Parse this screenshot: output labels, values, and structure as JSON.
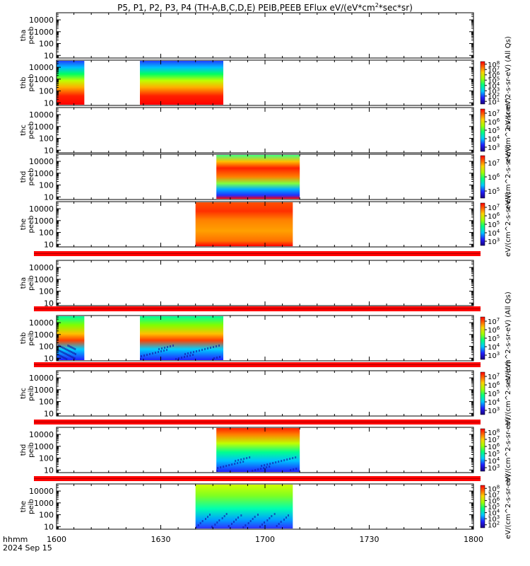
{
  "chart_data": {
    "type": "heatmap",
    "title": "P5, P1, P2, P3, P4 (TH-A,B,C,D,E) PEIB,PEEB EFlux eV/(eV*cm",
    "title_sup": "2",
    "title_end": "*sec*sr)",
    "x_units_label": "hhmm",
    "date_label": "2024 Sep 15",
    "x_ticks": [
      "1600",
      "1630",
      "1700",
      "1730",
      "1800"
    ],
    "y_ticks": [
      "10",
      "100",
      "1000",
      "10000"
    ],
    "y_scale": "log",
    "colormap": "rainbow",
    "panels": [
      {
        "probe": "tha",
        "product": "peeb",
        "coverage": [],
        "cbar": null
      },
      {
        "probe": "thb",
        "product": "peeb",
        "coverage": [
          [
            "1600",
            "1608"
          ],
          [
            "1624",
            "1648"
          ]
        ],
        "style": "bands",
        "cbar": {
          "label": "eV/(cm^2-s-sr-eV) (All Qs)",
          "ticks": [
            "10^1",
            "10^2",
            "10^3",
            "10^4",
            "10^5",
            "10^6",
            "10^7",
            "10^8"
          ]
        }
      },
      {
        "probe": "thc",
        "product": "peeb",
        "coverage": [],
        "cbar": {
          "label": "eV/(cm^2-s-sr-eV)",
          "ticks": [
            "10^3",
            "10^4",
            "10^5",
            "10^6",
            "10^7"
          ]
        }
      },
      {
        "probe": "thd",
        "product": "peeb",
        "coverage": [
          [
            "1646",
            "1710"
          ]
        ],
        "style": "bands_mid",
        "cbar": {
          "label": "eV/(cm^2-s-sr-eV)",
          "ticks": [
            "10^5",
            "10^6",
            "10^7"
          ]
        }
      },
      {
        "probe": "the",
        "product": "peeb",
        "coverage": [
          [
            "1640",
            "1708"
          ]
        ],
        "style": "warm",
        "cbar": {
          "label": "eV/(cm^2-s-sr-eV)",
          "ticks": [
            "10^3",
            "10^4",
            "10^5",
            "10^6",
            "10^7"
          ]
        }
      },
      {
        "probe": "tha",
        "product": "peib",
        "coverage": [],
        "cbar": null
      },
      {
        "probe": "thb",
        "product": "peib",
        "coverage": [
          [
            "1600",
            "1608"
          ],
          [
            "1624",
            "1648"
          ]
        ],
        "style": "ion",
        "cbar": {
          "label": "eV/(cm^2-s-sr-eV) (All Qs)",
          "ticks": [
            "10^3",
            "10^4",
            "10^5",
            "10^6",
            "10^7"
          ]
        }
      },
      {
        "probe": "thc",
        "product": "peib",
        "coverage": [],
        "cbar": {
          "label": "eV/(cm^2-s-sr-eV)",
          "ticks": [
            "10^3",
            "10^4",
            "10^5",
            "10^6",
            "10^7"
          ]
        }
      },
      {
        "probe": "thd",
        "product": "peib",
        "coverage": [
          [
            "1646",
            "1710"
          ]
        ],
        "style": "ion_hot",
        "cbar": {
          "label": "eV/(cm^2-s-sr-eV)",
          "ticks": [
            "10^3",
            "10^4",
            "10^5",
            "10^6",
            "10^7",
            "10^8"
          ]
        }
      },
      {
        "probe": "the",
        "product": "peib",
        "coverage": [
          [
            "1640",
            "1708"
          ]
        ],
        "style": "ion_hot2",
        "cbar": {
          "label": "eV/(cm^2-s-sr-eV)",
          "ticks": [
            "10^2",
            "10^3",
            "10^4",
            "10^5",
            "10^6",
            "10^7",
            "10^8"
          ]
        }
      }
    ]
  }
}
